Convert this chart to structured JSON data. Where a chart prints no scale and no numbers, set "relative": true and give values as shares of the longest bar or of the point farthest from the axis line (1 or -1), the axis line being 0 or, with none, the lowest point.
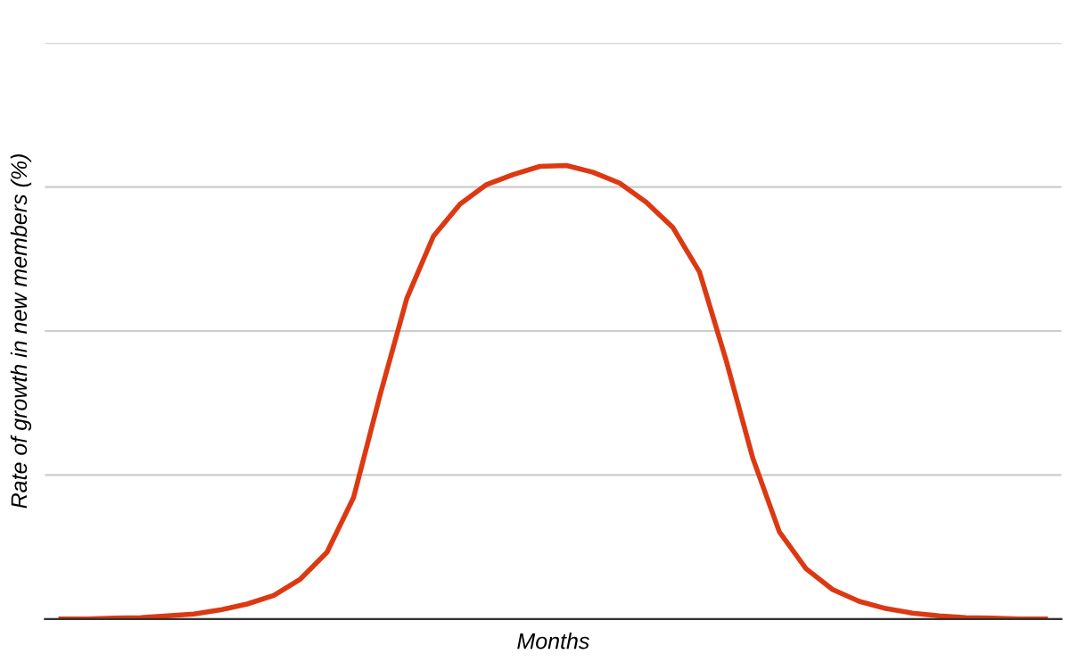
{
  "chart_data": {
    "type": "line",
    "xlabel": "Months",
    "ylabel": "Rate of growth in new members (%)",
    "relative": true,
    "grid": "y",
    "legend": false,
    "marker": "none",
    "line_style": "solid",
    "categories": [
      null,
      null,
      null,
      null,
      null,
      null,
      null,
      null,
      null,
      null,
      null,
      null,
      null,
      null,
      null,
      null,
      null,
      null,
      null,
      null,
      null,
      null,
      null,
      null,
      null,
      null,
      null,
      null,
      null,
      null,
      null,
      null,
      null,
      null,
      null,
      null,
      null,
      null
    ],
    "series": [
      {
        "color": "#dc3912",
        "values": [
          0,
          0,
          0.002,
          0.003,
          0.007,
          0.011,
          0.02,
          0.033,
          0.052,
          0.088,
          0.147,
          0.268,
          0.495,
          0.707,
          0.844,
          0.915,
          0.958,
          0.98,
          0.998,
          1,
          0.985,
          0.961,
          0.919,
          0.863,
          0.765,
          0.57,
          0.355,
          0.192,
          0.111,
          0.065,
          0.039,
          0.023,
          0.013,
          0.007,
          0.003,
          0.002,
          0,
          0
        ]
      }
    ]
  }
}
